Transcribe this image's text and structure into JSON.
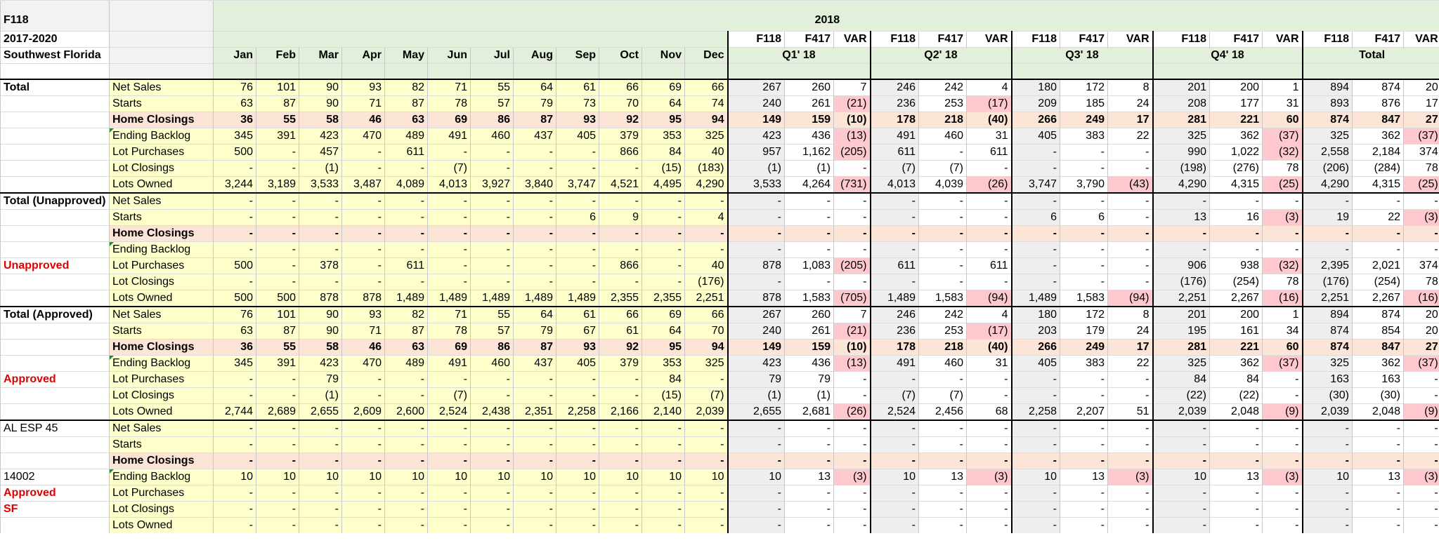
{
  "header": {
    "code": "F118",
    "period": "2017-2020",
    "region": "Southwest Florida",
    "year": "2018",
    "months": [
      "Jan",
      "Feb",
      "Mar",
      "Apr",
      "May",
      "Jun",
      "Jul",
      "Aug",
      "Sep",
      "Oct",
      "Nov",
      "Dec"
    ],
    "col_labels": [
      "F118",
      "F417",
      "VAR"
    ],
    "quarters": [
      "Q1' 18",
      "Q2' 18",
      "Q3' 18",
      "Q4' 18",
      "Total"
    ]
  },
  "blocks": [
    {
      "side": [
        "Total"
      ],
      "side_red": false,
      "rows": [
        {
          "label": "Net Sales",
          "m": [
            "76",
            "101",
            "90",
            "93",
            "82",
            "71",
            "55",
            "64",
            "61",
            "66",
            "69",
            "66"
          ],
          "q": [
            "267",
            "260",
            "7",
            "246",
            "242",
            "4",
            "180",
            "172",
            "8",
            "201",
            "200",
            "1",
            "894",
            "874",
            "20"
          ]
        },
        {
          "label": "Starts",
          "m": [
            "63",
            "87",
            "90",
            "71",
            "87",
            "78",
            "57",
            "79",
            "73",
            "70",
            "64",
            "74"
          ],
          "q": [
            "240",
            "261",
            "(21)",
            "236",
            "253",
            "(17)",
            "209",
            "185",
            "24",
            "208",
            "177",
            "31",
            "893",
            "876",
            "17"
          ]
        },
        {
          "label": "Home Closings",
          "m": [
            "36",
            "55",
            "58",
            "46",
            "63",
            "69",
            "86",
            "87",
            "93",
            "92",
            "95",
            "94"
          ],
          "q": [
            "149",
            "159",
            "(10)",
            "178",
            "218",
            "(40)",
            "266",
            "249",
            "17",
            "281",
            "221",
            "60",
            "874",
            "847",
            "27"
          ]
        },
        {
          "label": "Ending Backlog",
          "m": [
            "345",
            "391",
            "423",
            "470",
            "489",
            "491",
            "460",
            "437",
            "405",
            "379",
            "353",
            "325"
          ],
          "q": [
            "423",
            "436",
            "(13)",
            "491",
            "460",
            "31",
            "405",
            "383",
            "22",
            "325",
            "362",
            "(37)",
            "325",
            "362",
            "(37)"
          ]
        },
        {
          "label": "Lot Purchases",
          "m": [
            "500",
            "-",
            "457",
            "-",
            "611",
            "-",
            "-",
            "-",
            "-",
            "866",
            "84",
            "40"
          ],
          "q": [
            "957",
            "1,162",
            "(205)",
            "611",
            "-",
            "611",
            "-",
            "-",
            "-",
            "990",
            "1,022",
            "(32)",
            "2,558",
            "2,184",
            "374"
          ]
        },
        {
          "label": "Lot Closings",
          "m": [
            "-",
            "-",
            "(1)",
            "-",
            "-",
            "(7)",
            "-",
            "-",
            "-",
            "-",
            "(15)",
            "(183)"
          ],
          "q": [
            "(1)",
            "(1)",
            "-",
            "(7)",
            "(7)",
            "-",
            "-",
            "-",
            "-",
            "(198)",
            "(276)",
            "78",
            "(206)",
            "(284)",
            "78"
          ]
        },
        {
          "label": "Lots Owned",
          "m": [
            "3,244",
            "3,189",
            "3,533",
            "3,487",
            "4,089",
            "4,013",
            "3,927",
            "3,840",
            "3,747",
            "4,521",
            "4,495",
            "4,290"
          ],
          "q": [
            "3,533",
            "4,264",
            "(731)",
            "4,013",
            "4,039",
            "(26)",
            "3,747",
            "3,790",
            "(43)",
            "4,290",
            "4,315",
            "(25)",
            "4,290",
            "4,315",
            "(25)"
          ]
        }
      ]
    },
    {
      "side": [
        "Total (Unapproved)",
        "",
        "",
        "",
        "Unapproved"
      ],
      "side_red": true,
      "rows": [
        {
          "label": "Net Sales",
          "m": [
            "-",
            "-",
            "-",
            "-",
            "-",
            "-",
            "-",
            "-",
            "-",
            "-",
            "-",
            "-"
          ],
          "q": [
            "-",
            "-",
            "-",
            "-",
            "-",
            "-",
            "-",
            "-",
            "-",
            "-",
            "-",
            "-",
            "-",
            "-",
            "-"
          ]
        },
        {
          "label": "Starts",
          "m": [
            "-",
            "-",
            "-",
            "-",
            "-",
            "-",
            "-",
            "-",
            "6",
            "9",
            "-",
            "4"
          ],
          "q": [
            "-",
            "-",
            "-",
            "-",
            "-",
            "-",
            "6",
            "6",
            "-",
            "13",
            "16",
            "(3)",
            "19",
            "22",
            "(3)"
          ]
        },
        {
          "label": "Home Closings",
          "m": [
            "-",
            "-",
            "-",
            "-",
            "-",
            "-",
            "-",
            "-",
            "-",
            "-",
            "-",
            "-"
          ],
          "q": [
            "-",
            "-",
            "-",
            "-",
            "-",
            "-",
            "-",
            "-",
            "-",
            "-",
            "-",
            "-",
            "-",
            "-",
            "-"
          ]
        },
        {
          "label": "Ending Backlog",
          "m": [
            "-",
            "-",
            "-",
            "-",
            "-",
            "-",
            "-",
            "-",
            "-",
            "-",
            "-",
            "-"
          ],
          "q": [
            "-",
            "-",
            "-",
            "-",
            "-",
            "-",
            "-",
            "-",
            "-",
            "-",
            "-",
            "-",
            "-",
            "-",
            "-"
          ]
        },
        {
          "label": "Lot Purchases",
          "m": [
            "500",
            "-",
            "378",
            "-",
            "611",
            "-",
            "-",
            "-",
            "-",
            "866",
            "-",
            "40"
          ],
          "q": [
            "878",
            "1,083",
            "(205)",
            "611",
            "-",
            "611",
            "-",
            "-",
            "-",
            "906",
            "938",
            "(32)",
            "2,395",
            "2,021",
            "374"
          ]
        },
        {
          "label": "Lot Closings",
          "m": [
            "-",
            "-",
            "-",
            "-",
            "-",
            "-",
            "-",
            "-",
            "-",
            "-",
            "-",
            "(176)"
          ],
          "q": [
            "-",
            "-",
            "-",
            "-",
            "-",
            "-",
            "-",
            "-",
            "-",
            "(176)",
            "(254)",
            "78",
            "(176)",
            "(254)",
            "78"
          ]
        },
        {
          "label": "Lots Owned",
          "m": [
            "500",
            "500",
            "878",
            "878",
            "1,489",
            "1,489",
            "1,489",
            "1,489",
            "1,489",
            "2,355",
            "2,355",
            "2,251"
          ],
          "q": [
            "878",
            "1,583",
            "(705)",
            "1,489",
            "1,583",
            "(94)",
            "1,489",
            "1,583",
            "(94)",
            "2,251",
            "2,267",
            "(16)",
            "2,251",
            "2,267",
            "(16)"
          ]
        }
      ]
    },
    {
      "side": [
        "Total (Approved)",
        "",
        "",
        "",
        "Approved"
      ],
      "side_red": true,
      "rows": [
        {
          "label": "Net Sales",
          "m": [
            "76",
            "101",
            "90",
            "93",
            "82",
            "71",
            "55",
            "64",
            "61",
            "66",
            "69",
            "66"
          ],
          "q": [
            "267",
            "260",
            "7",
            "246",
            "242",
            "4",
            "180",
            "172",
            "8",
            "201",
            "200",
            "1",
            "894",
            "874",
            "20"
          ]
        },
        {
          "label": "Starts",
          "m": [
            "63",
            "87",
            "90",
            "71",
            "87",
            "78",
            "57",
            "79",
            "67",
            "61",
            "64",
            "70"
          ],
          "q": [
            "240",
            "261",
            "(21)",
            "236",
            "253",
            "(17)",
            "203",
            "179",
            "24",
            "195",
            "161",
            "34",
            "874",
            "854",
            "20"
          ]
        },
        {
          "label": "Home Closings",
          "m": [
            "36",
            "55",
            "58",
            "46",
            "63",
            "69",
            "86",
            "87",
            "93",
            "92",
            "95",
            "94"
          ],
          "q": [
            "149",
            "159",
            "(10)",
            "178",
            "218",
            "(40)",
            "266",
            "249",
            "17",
            "281",
            "221",
            "60",
            "874",
            "847",
            "27"
          ]
        },
        {
          "label": "Ending Backlog",
          "m": [
            "345",
            "391",
            "423",
            "470",
            "489",
            "491",
            "460",
            "437",
            "405",
            "379",
            "353",
            "325"
          ],
          "q": [
            "423",
            "436",
            "(13)",
            "491",
            "460",
            "31",
            "405",
            "383",
            "22",
            "325",
            "362",
            "(37)",
            "325",
            "362",
            "(37)"
          ]
        },
        {
          "label": "Lot Purchases",
          "m": [
            "-",
            "-",
            "79",
            "-",
            "-",
            "-",
            "-",
            "-",
            "-",
            "-",
            "84",
            "-"
          ],
          "q": [
            "79",
            "79",
            "-",
            "-",
            "-",
            "-",
            "-",
            "-",
            "-",
            "84",
            "84",
            "-",
            "163",
            "163",
            "-"
          ]
        },
        {
          "label": "Lot Closings",
          "m": [
            "-",
            "-",
            "(1)",
            "-",
            "-",
            "(7)",
            "-",
            "-",
            "-",
            "-",
            "(15)",
            "(7)"
          ],
          "q": [
            "(1)",
            "(1)",
            "-",
            "(7)",
            "(7)",
            "-",
            "-",
            "-",
            "-",
            "(22)",
            "(22)",
            "-",
            "(30)",
            "(30)",
            "-"
          ]
        },
        {
          "label": "Lots Owned",
          "m": [
            "2,744",
            "2,689",
            "2,655",
            "2,609",
            "2,600",
            "2,524",
            "2,438",
            "2,351",
            "2,258",
            "2,166",
            "2,140",
            "2,039"
          ],
          "q": [
            "2,655",
            "2,681",
            "(26)",
            "2,524",
            "2,456",
            "68",
            "2,258",
            "2,207",
            "51",
            "2,039",
            "2,048",
            "(9)",
            "2,039",
            "2,048",
            "(9)"
          ]
        }
      ]
    },
    {
      "side": [
        "AL ESP 45",
        "",
        "",
        "14002",
        "Approved",
        "SF"
      ],
      "side_red": false,
      "rows": [
        {
          "label": "Net Sales",
          "m": [
            "-",
            "-",
            "-",
            "-",
            "-",
            "-",
            "-",
            "-",
            "-",
            "-",
            "-",
            "-"
          ],
          "q": [
            "-",
            "-",
            "-",
            "-",
            "-",
            "-",
            "-",
            "-",
            "-",
            "-",
            "-",
            "-",
            "-",
            "-",
            "-"
          ]
        },
        {
          "label": "Starts",
          "m": [
            "-",
            "-",
            "-",
            "-",
            "-",
            "-",
            "-",
            "-",
            "-",
            "-",
            "-",
            "-"
          ],
          "q": [
            "-",
            "-",
            "-",
            "-",
            "-",
            "-",
            "-",
            "-",
            "-",
            "-",
            "-",
            "-",
            "-",
            "-",
            "-"
          ]
        },
        {
          "label": "Home Closings",
          "m": [
            "-",
            "-",
            "-",
            "-",
            "-",
            "-",
            "-",
            "-",
            "-",
            "-",
            "-",
            "-"
          ],
          "q": [
            "-",
            "-",
            "-",
            "-",
            "-",
            "-",
            "-",
            "-",
            "-",
            "-",
            "-",
            "-",
            "-",
            "-",
            "-"
          ]
        },
        {
          "label": "Ending Backlog",
          "m": [
            "10",
            "10",
            "10",
            "10",
            "10",
            "10",
            "10",
            "10",
            "10",
            "10",
            "10",
            "10"
          ],
          "q": [
            "10",
            "13",
            "(3)",
            "10",
            "13",
            "(3)",
            "10",
            "13",
            "(3)",
            "10",
            "13",
            "(3)",
            "10",
            "13",
            "(3)"
          ]
        },
        {
          "label": "Lot Purchases",
          "m": [
            "-",
            "-",
            "-",
            "-",
            "-",
            "-",
            "-",
            "-",
            "-",
            "-",
            "-",
            "-"
          ],
          "q": [
            "-",
            "-",
            "-",
            "-",
            "-",
            "-",
            "-",
            "-",
            "-",
            "-",
            "-",
            "-",
            "-",
            "-",
            "-"
          ]
        },
        {
          "label": "Lot Closings",
          "m": [
            "-",
            "-",
            "-",
            "-",
            "-",
            "-",
            "-",
            "-",
            "-",
            "-",
            "-",
            "-"
          ],
          "q": [
            "-",
            "-",
            "-",
            "-",
            "-",
            "-",
            "-",
            "-",
            "-",
            "-",
            "-",
            "-",
            "-",
            "-",
            "-"
          ]
        },
        {
          "label": "Lots Owned",
          "m": [
            "-",
            "-",
            "-",
            "-",
            "-",
            "-",
            "-",
            "-",
            "-",
            "-",
            "-",
            "-"
          ],
          "q": [
            "-",
            "-",
            "-",
            "-",
            "-",
            "-",
            "-",
            "-",
            "-",
            "-",
            "-",
            "-",
            "-",
            "-",
            "-"
          ]
        }
      ]
    }
  ],
  "colors": {
    "header_green": "#e2efda",
    "monthly_yellow": "#ffffcc",
    "closings_peach": "#fce4d6",
    "negative_pink": "#ffc7ce",
    "label_red": "#e00000"
  }
}
